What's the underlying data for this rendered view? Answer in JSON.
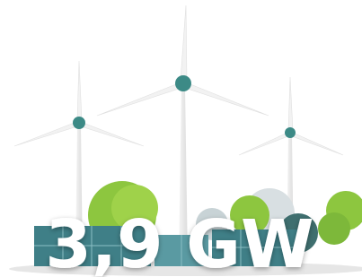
{
  "headline": "3,9 GW"
}
